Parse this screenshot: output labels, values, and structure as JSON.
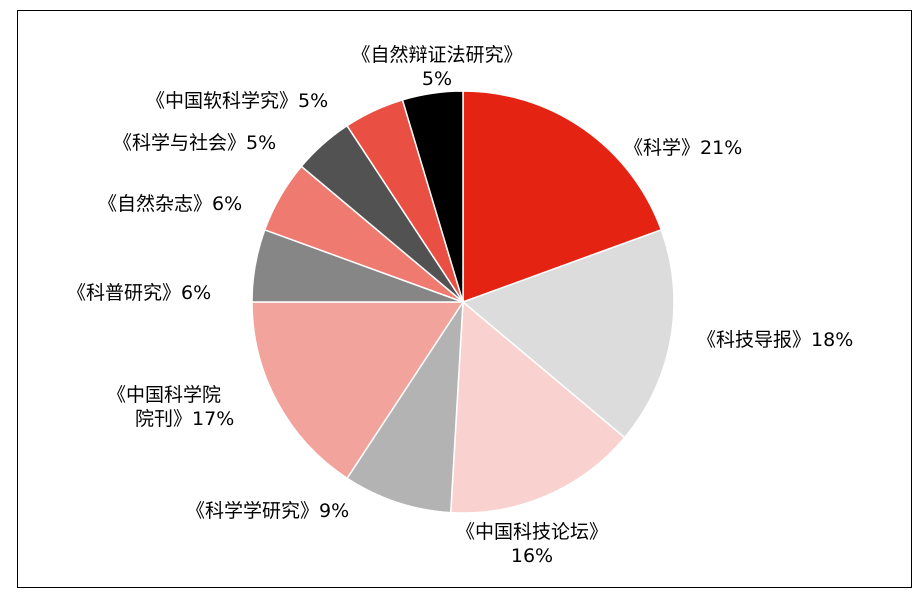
{
  "chart_data": {
    "type": "pie",
    "slices": [
      {
        "label": "《科学》",
        "value": 21,
        "value_label": "21%",
        "color": "#e42313"
      },
      {
        "label": "《科技导报》",
        "value": 18,
        "value_label": "18%",
        "color": "#dcdcdc"
      },
      {
        "label": "《中国科技论坛》",
        "value": 16,
        "value_label": "16%",
        "color": "#f9d2cf"
      },
      {
        "label": "《科学学研究》",
        "value": 9,
        "value_label": "9%",
        "color": "#b3b3b4"
      },
      {
        "label": "《中国科学院院刊》",
        "label_lines": [
          "《中国科学院",
          "院刊》"
        ],
        "value": 17,
        "value_label": "17%",
        "color": "#f2a39c"
      },
      {
        "label": "《科普研究》",
        "value": 6,
        "value_label": "6%",
        "color": "#868686"
      },
      {
        "label": "《自然杂志》",
        "value": 6,
        "value_label": "6%",
        "color": "#ef7a70"
      },
      {
        "label": "《科学与社会》",
        "value": 5,
        "value_label": "5%",
        "color": "#525252"
      },
      {
        "label": "《中国软科学究》",
        "value": 5,
        "value_label": "5%",
        "color": "#e94f42"
      },
      {
        "label": "《自然辩证法研究》",
        "value": 5,
        "value_label": "5%",
        "color": "#000000"
      }
    ],
    "start_angle": "12 o'clock",
    "direction": "clockwise",
    "legend": "none"
  }
}
